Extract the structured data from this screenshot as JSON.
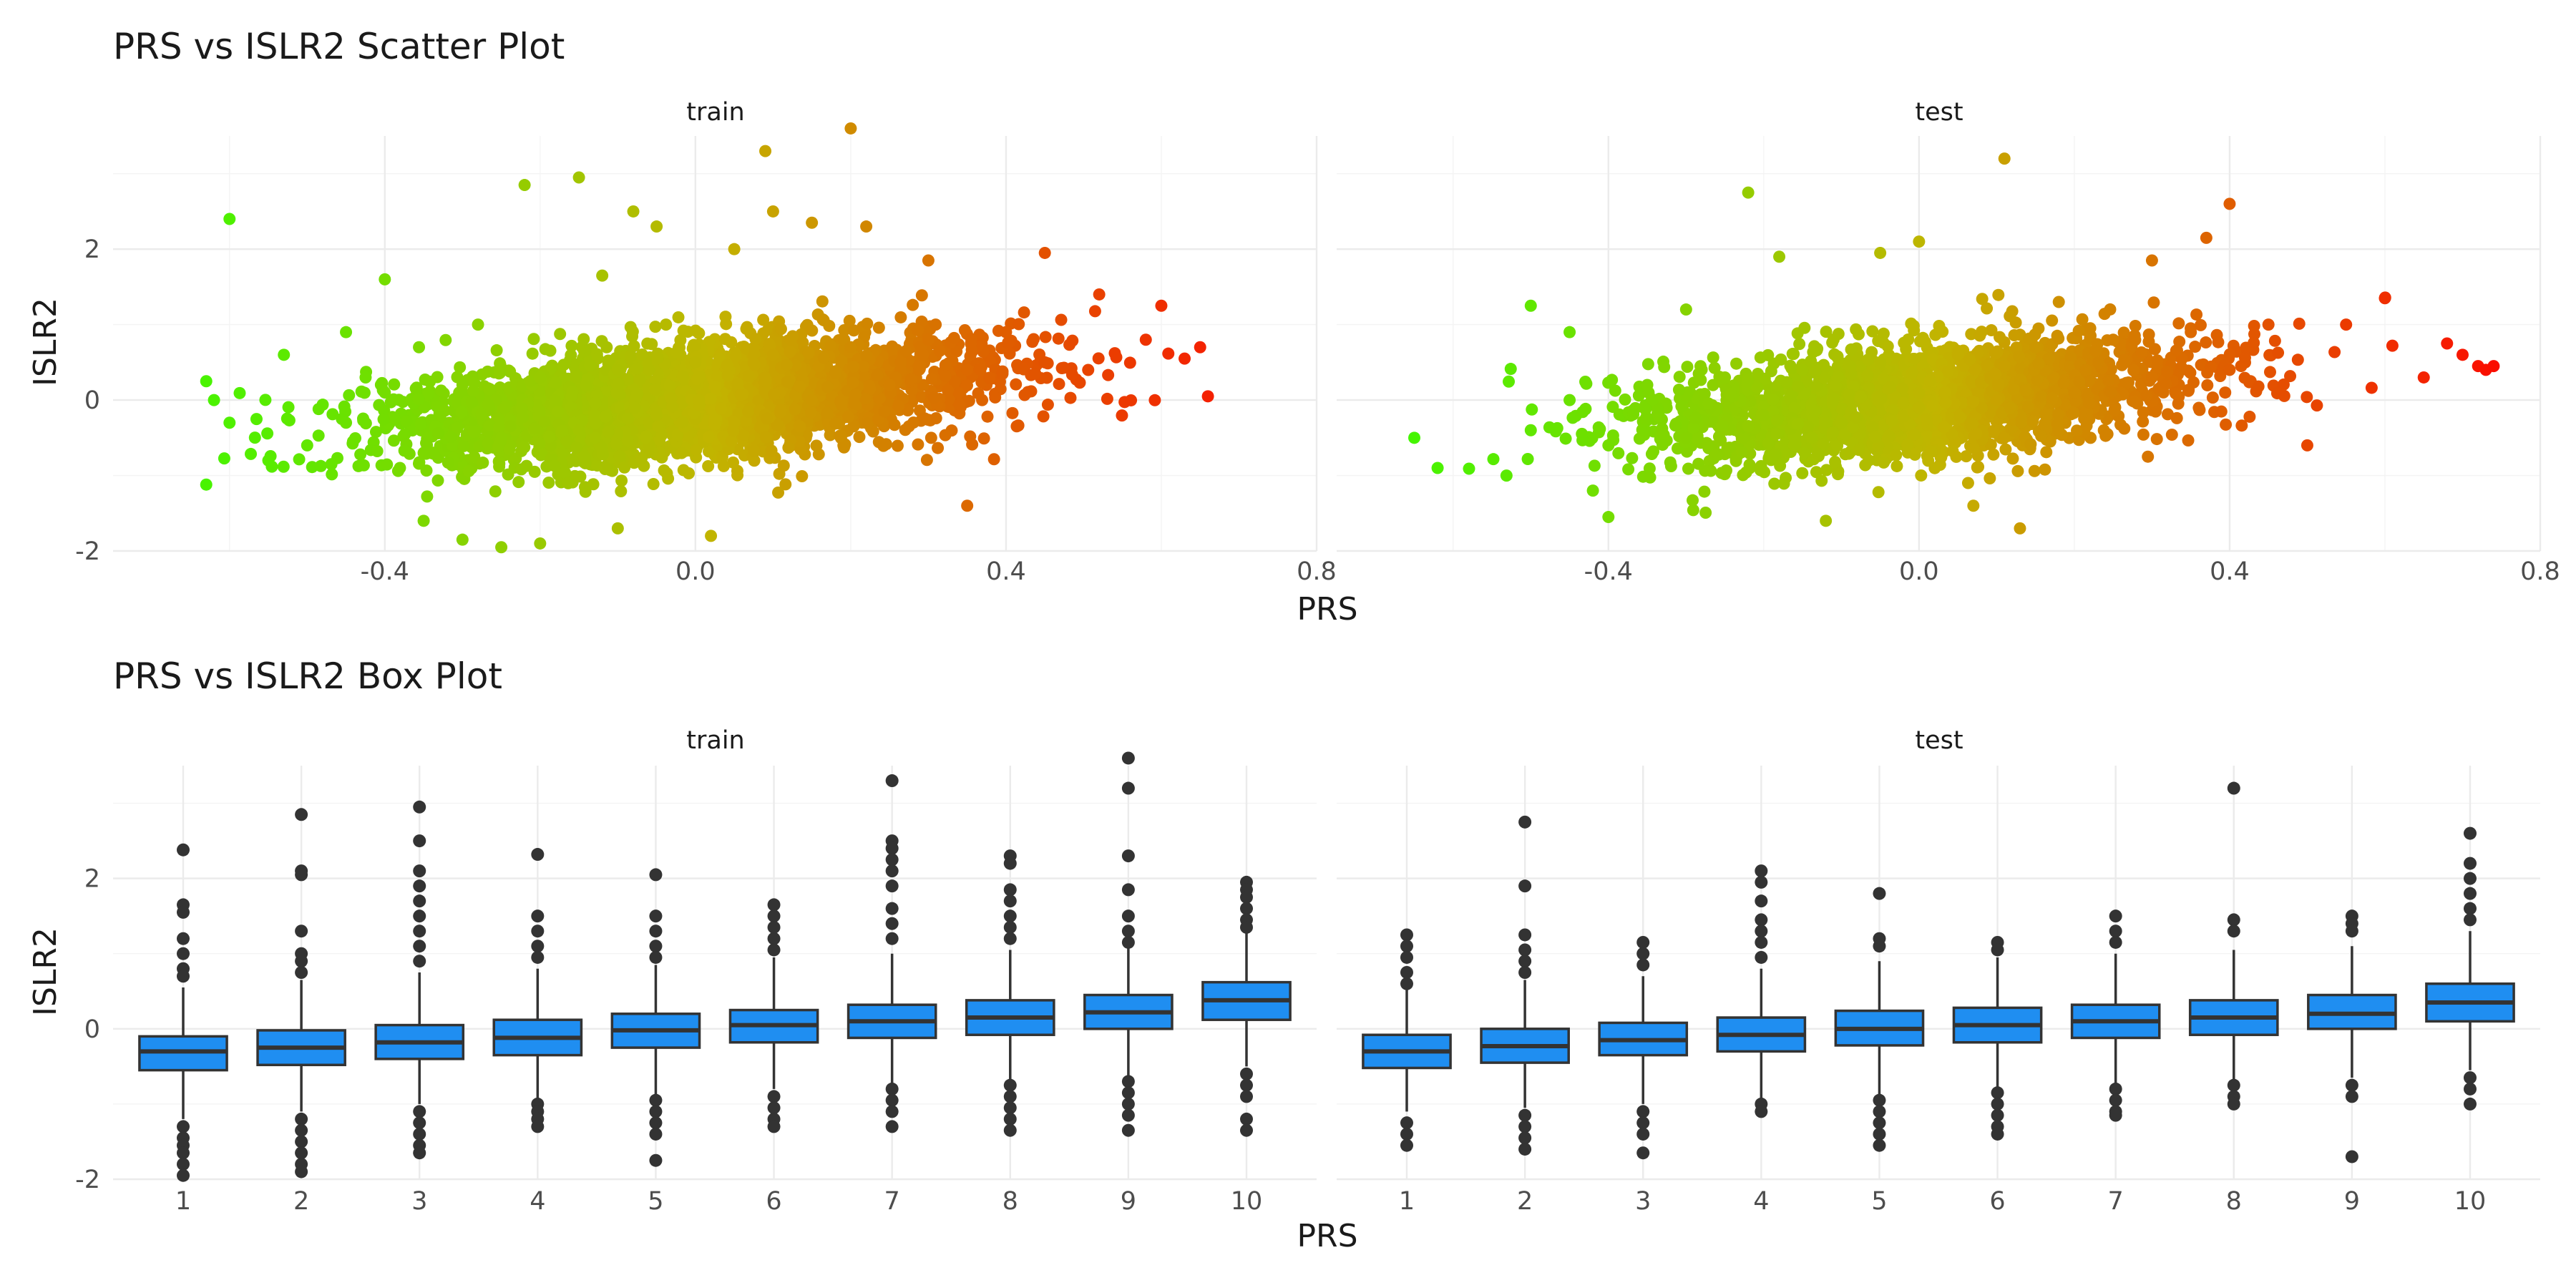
{
  "chart_data": [
    {
      "type": "scatter",
      "title": "PRS vs ISLR2 Scatter Plot",
      "xlabel": "PRS",
      "ylabel": "ISLR2",
      "facets": [
        "train",
        "test"
      ],
      "xlim": [
        -0.75,
        0.8
      ],
      "ylim": [
        -2.0,
        3.5
      ],
      "x_ticks": [
        -0.4,
        0.0,
        0.4,
        0.8
      ],
      "x_tick_labels": [
        "-0.4",
        "0.0",
        "0.4",
        "0.8"
      ],
      "y_ticks": [
        -2,
        0,
        2
      ],
      "y_tick_labels": [
        "-2",
        "0",
        "2"
      ],
      "color_scale": {
        "low": "#33ff00",
        "mid": "#c2b400",
        "high": "#ff0000"
      },
      "grid": true,
      "legend": "none",
      "series": [
        {
          "points": [
            [
              -0.63,
              0.25
            ],
            [
              -0.63,
              -1.12
            ],
            [
              -0.62,
              0.0
            ],
            [
              -0.6,
              2.4
            ],
            [
              -0.6,
              -0.3
            ],
            [
              -0.55,
              -0.8
            ],
            [
              -0.53,
              0.6
            ],
            [
              -0.45,
              0.9
            ],
            [
              -0.4,
              1.6
            ],
            [
              -0.35,
              -1.6
            ],
            [
              -0.3,
              -1.85
            ],
            [
              -0.28,
              1.0
            ],
            [
              -0.25,
              -1.95
            ],
            [
              -0.22,
              2.85
            ],
            [
              -0.2,
              -1.9
            ],
            [
              -0.15,
              2.95
            ],
            [
              -0.12,
              1.65
            ],
            [
              -0.1,
              -1.7
            ],
            [
              -0.08,
              2.5
            ],
            [
              -0.05,
              2.3
            ],
            [
              0.02,
              -1.8
            ],
            [
              0.05,
              2.0
            ],
            [
              0.09,
              3.3
            ],
            [
              0.1,
              2.5
            ],
            [
              0.15,
              2.35
            ],
            [
              0.2,
              3.6
            ],
            [
              0.22,
              2.3
            ],
            [
              0.3,
              1.85
            ],
            [
              0.35,
              -1.4
            ],
            [
              0.45,
              1.95
            ],
            [
              0.52,
              1.4
            ],
            [
              0.58,
              0.8
            ],
            [
              0.6,
              1.25
            ],
            [
              0.63,
              0.55
            ],
            [
              0.65,
              0.7
            ],
            [
              0.66,
              0.05
            ],
            [
              -0.5,
              -0.6
            ],
            [
              -0.45,
              -0.3
            ],
            [
              -0.4,
              0.1
            ],
            [
              -0.35,
              -0.7
            ],
            [
              -0.3,
              0.2
            ],
            [
              -0.25,
              -0.5
            ],
            [
              -0.2,
              0.3
            ],
            [
              -0.15,
              -0.4
            ],
            [
              -0.1,
              0.4
            ],
            [
              -0.05,
              -0.2
            ],
            [
              0.0,
              0.5
            ],
            [
              0.05,
              -0.3
            ],
            [
              0.1,
              0.6
            ],
            [
              0.15,
              0.0
            ],
            [
              0.2,
              0.7
            ],
            [
              0.25,
              0.2
            ],
            [
              0.3,
              0.8
            ],
            [
              0.35,
              0.4
            ],
            [
              0.4,
              0.9
            ],
            [
              0.45,
              0.5
            ]
          ]
        },
        {
          "points": [
            [
              -0.65,
              -0.5
            ],
            [
              -0.62,
              -0.9
            ],
            [
              -0.5,
              1.25
            ],
            [
              -0.45,
              0.9
            ],
            [
              -0.42,
              -1.2
            ],
            [
              -0.4,
              -1.55
            ],
            [
              -0.3,
              1.2
            ],
            [
              -0.22,
              2.75
            ],
            [
              -0.18,
              1.9
            ],
            [
              -0.12,
              -1.6
            ],
            [
              -0.05,
              1.95
            ],
            [
              0.0,
              2.1
            ],
            [
              0.07,
              -1.4
            ],
            [
              0.11,
              3.2
            ],
            [
              0.13,
              -1.7
            ],
            [
              0.18,
              1.3
            ],
            [
              0.3,
              1.85
            ],
            [
              0.37,
              2.15
            ],
            [
              0.4,
              2.6
            ],
            [
              0.5,
              -0.6
            ],
            [
              0.55,
              1.0
            ],
            [
              0.6,
              1.35
            ],
            [
              0.65,
              0.3
            ],
            [
              0.68,
              0.75
            ],
            [
              0.7,
              0.6
            ],
            [
              0.72,
              0.45
            ],
            [
              0.73,
              0.4
            ],
            [
              0.74,
              0.45
            ],
            [
              -0.5,
              -0.4
            ],
            [
              -0.45,
              0.0
            ],
            [
              -0.4,
              -0.6
            ],
            [
              -0.35,
              0.2
            ],
            [
              -0.3,
              -0.5
            ],
            [
              -0.25,
              0.3
            ],
            [
              -0.2,
              -0.2
            ],
            [
              -0.15,
              0.4
            ],
            [
              -0.1,
              -0.3
            ],
            [
              -0.05,
              0.5
            ],
            [
              0.0,
              -0.1
            ],
            [
              0.05,
              0.6
            ],
            [
              0.1,
              0.0
            ],
            [
              0.15,
              0.7
            ],
            [
              0.2,
              0.1
            ],
            [
              0.25,
              0.8
            ],
            [
              0.3,
              0.3
            ],
            [
              0.35,
              0.9
            ],
            [
              0.4,
              0.4
            ],
            [
              0.45,
              1.0
            ]
          ]
        }
      ]
    },
    {
      "type": "box",
      "title": "PRS vs ISLR2 Box Plot",
      "xlabel": "PRS",
      "ylabel": "ISLR2",
      "facets": [
        "train",
        "test"
      ],
      "ylim": [
        -2.0,
        3.5
      ],
      "y_ticks": [
        -2,
        0,
        2
      ],
      "y_tick_labels": [
        "-2",
        "0",
        "2"
      ],
      "categories": [
        "1",
        "2",
        "3",
        "4",
        "5",
        "6",
        "7",
        "8",
        "9",
        "10"
      ],
      "box_fill": "#1f8ef1",
      "box_stroke": "#333333",
      "grid": true,
      "series": [
        {
          "boxes": [
            {
              "q1": -0.55,
              "median": -0.3,
              "q3": -0.1,
              "lo": -1.2,
              "hi": 0.55,
              "outliers": [
                2.38,
                1.65,
                1.55,
                1.2,
                1.0,
                0.8,
                0.7,
                -1.3,
                -1.45,
                -1.55,
                -1.65,
                -1.8,
                -1.95
              ]
            },
            {
              "q1": -0.48,
              "median": -0.25,
              "q3": -0.02,
              "lo": -1.1,
              "hi": 0.65,
              "outliers": [
                2.85,
                2.1,
                2.05,
                1.3,
                1.0,
                0.9,
                0.75,
                -1.2,
                -1.35,
                -1.5,
                -1.65,
                -1.8,
                -1.9
              ]
            },
            {
              "q1": -0.4,
              "median": -0.18,
              "q3": 0.05,
              "lo": -1.0,
              "hi": 0.75,
              "outliers": [
                2.95,
                2.5,
                2.1,
                1.9,
                1.7,
                1.5,
                1.3,
                1.1,
                0.9,
                -1.1,
                -1.25,
                -1.4,
                -1.55,
                -1.65
              ]
            },
            {
              "q1": -0.35,
              "median": -0.12,
              "q3": 0.12,
              "lo": -1.0,
              "hi": 0.8,
              "outliers": [
                2.32,
                1.5,
                1.3,
                1.1,
                0.95,
                -1.0,
                -1.1,
                -1.2,
                -1.3
              ]
            },
            {
              "q1": -0.25,
              "median": -0.02,
              "q3": 0.2,
              "lo": -0.9,
              "hi": 0.85,
              "outliers": [
                2.05,
                1.5,
                1.3,
                1.1,
                0.95,
                -0.95,
                -1.1,
                -1.25,
                -1.4,
                -1.75
              ]
            },
            {
              "q1": -0.18,
              "median": 0.05,
              "q3": 0.25,
              "lo": -0.8,
              "hi": 0.95,
              "outliers": [
                1.65,
                1.5,
                1.35,
                1.2,
                1.05,
                -0.9,
                -1.05,
                -1.2,
                -1.3
              ]
            },
            {
              "q1": -0.12,
              "median": 0.1,
              "q3": 0.32,
              "lo": -0.75,
              "hi": 1.0,
              "outliers": [
                3.3,
                2.5,
                2.4,
                2.25,
                2.1,
                1.9,
                1.6,
                1.4,
                1.2,
                -0.8,
                -0.95,
                -1.1,
                -1.3
              ]
            },
            {
              "q1": -0.08,
              "median": 0.15,
              "q3": 0.38,
              "lo": -0.7,
              "hi": 1.05,
              "outliers": [
                2.3,
                2.2,
                1.85,
                1.7,
                1.5,
                1.35,
                1.2,
                -0.75,
                -0.9,
                -1.05,
                -1.2,
                -1.35
              ]
            },
            {
              "q1": 0.0,
              "median": 0.22,
              "q3": 0.45,
              "lo": -0.65,
              "hi": 1.1,
              "outliers": [
                3.6,
                3.2,
                2.3,
                1.85,
                1.5,
                1.3,
                1.15,
                -0.7,
                -0.85,
                -1.0,
                -1.15,
                -1.35
              ]
            },
            {
              "q1": 0.12,
              "median": 0.38,
              "q3": 0.62,
              "lo": -0.5,
              "hi": 1.3,
              "outliers": [
                1.95,
                1.85,
                1.75,
                1.6,
                1.45,
                1.35,
                -0.6,
                -0.75,
                -0.9,
                -1.2,
                -1.35
              ]
            }
          ]
        },
        {
          "boxes": [
            {
              "q1": -0.52,
              "median": -0.3,
              "q3": -0.08,
              "lo": -1.1,
              "hi": 0.55,
              "outliers": [
                1.25,
                1.1,
                0.95,
                0.75,
                0.6,
                -1.25,
                -1.4,
                -1.55
              ]
            },
            {
              "q1": -0.45,
              "median": -0.23,
              "q3": 0.0,
              "lo": -1.05,
              "hi": 0.65,
              "outliers": [
                2.75,
                1.9,
                1.25,
                1.05,
                0.9,
                0.75,
                -1.15,
                -1.3,
                -1.45,
                -1.6
              ]
            },
            {
              "q1": -0.35,
              "median": -0.15,
              "q3": 0.08,
              "lo": -1.0,
              "hi": 0.7,
              "outliers": [
                1.15,
                1.0,
                0.85,
                -1.1,
                -1.25,
                -1.4,
                -1.65
              ]
            },
            {
              "q1": -0.3,
              "median": -0.08,
              "q3": 0.15,
              "lo": -0.95,
              "hi": 0.8,
              "outliers": [
                2.1,
                1.95,
                1.7,
                1.45,
                1.3,
                1.15,
                0.95,
                -1.0,
                -1.1
              ]
            },
            {
              "q1": -0.22,
              "median": 0.0,
              "q3": 0.24,
              "lo": -0.9,
              "hi": 0.9,
              "outliers": [
                1.8,
                1.2,
                1.1,
                -0.95,
                -1.1,
                -1.25,
                -1.4,
                -1.55
              ]
            },
            {
              "q1": -0.18,
              "median": 0.05,
              "q3": 0.28,
              "lo": -0.8,
              "hi": 0.95,
              "outliers": [
                1.15,
                1.05,
                -0.85,
                -1.0,
                -1.15,
                -1.3,
                -1.4
              ]
            },
            {
              "q1": -0.12,
              "median": 0.1,
              "q3": 0.32,
              "lo": -0.75,
              "hi": 1.0,
              "outliers": [
                1.5,
                1.3,
                1.15,
                -0.8,
                -0.95,
                -1.1,
                -1.15
              ]
            },
            {
              "q1": -0.08,
              "median": 0.15,
              "q3": 0.38,
              "lo": -0.7,
              "hi": 1.05,
              "outliers": [
                3.2,
                1.45,
                1.3,
                -0.75,
                -0.9,
                -1.0
              ]
            },
            {
              "q1": 0.0,
              "median": 0.2,
              "q3": 0.45,
              "lo": -0.65,
              "hi": 1.1,
              "outliers": [
                1.5,
                1.4,
                1.3,
                -0.75,
                -0.9,
                -1.7
              ]
            },
            {
              "q1": 0.1,
              "median": 0.35,
              "q3": 0.6,
              "lo": -0.55,
              "hi": 1.3,
              "outliers": [
                2.6,
                2.2,
                2.0,
                1.8,
                1.6,
                1.45,
                -0.65,
                -0.8,
                -1.0
              ]
            }
          ]
        }
      ]
    }
  ]
}
